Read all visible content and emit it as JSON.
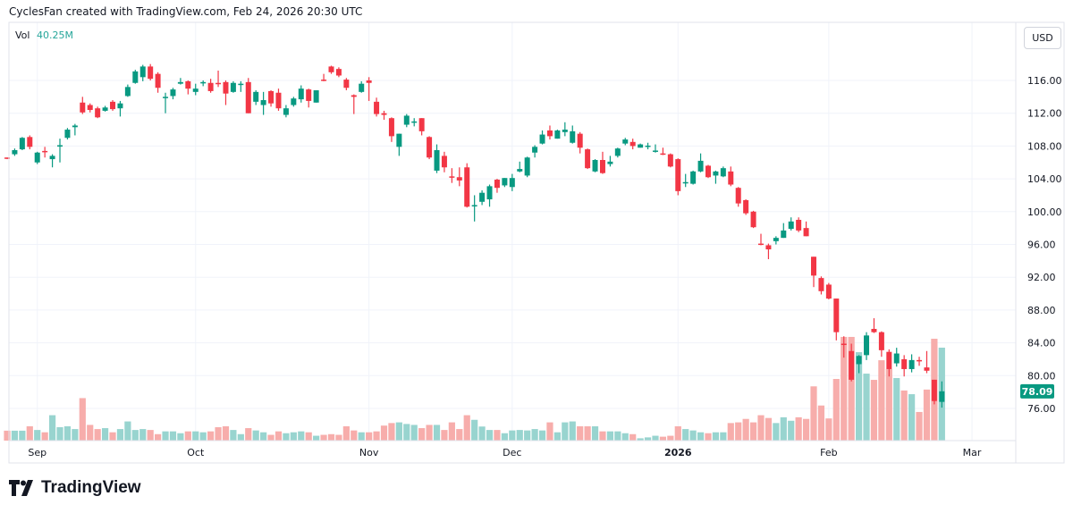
{
  "header": {
    "credit": "CyclesFan created with TradingView.com, Feb 24, 2026 20:30 UTC"
  },
  "volume_legend": {
    "label": "Vol",
    "value": "40.25M"
  },
  "currency_button": "USD",
  "brand": "TradingView",
  "colors": {
    "up": "#089981",
    "down": "#f23645",
    "volume_up": "#92d2cc",
    "volume_down": "#f7a9a7",
    "grid": "#f0f3fa"
  },
  "chart_data": {
    "type": "candlestick",
    "title": "",
    "last_price_label": "78.09",
    "y_ticks": [
      "116.00",
      "112.00",
      "108.00",
      "104.00",
      "100.00",
      "96.00",
      "92.00",
      "88.00",
      "84.00",
      "80.00",
      "76.00"
    ],
    "x_ticks": [
      "Sep",
      "Oct",
      "Nov",
      "Dec",
      "2026",
      "Feb",
      "Mar"
    ],
    "ylim": [
      72,
      120
    ],
    "grid": true,
    "volume_unit": "M",
    "candles": [
      [
        106.6,
        106.6,
        106.4,
        106.5
      ],
      [
        107.0,
        107.7,
        106.8,
        107.5
      ],
      [
        107.6,
        109.1,
        107.5,
        109.0
      ],
      [
        109.1,
        109.3,
        107.6,
        107.9
      ],
      [
        106.0,
        107.3,
        105.8,
        107.2
      ],
      [
        107.4,
        107.9,
        106.6,
        107.3
      ],
      [
        106.4,
        107.0,
        105.4,
        106.8
      ],
      [
        108.0,
        108.9,
        106.0,
        108.1
      ],
      [
        109.0,
        110.2,
        108.8,
        110.0
      ],
      [
        110.3,
        110.7,
        109.3,
        110.5
      ],
      [
        113.3,
        114.0,
        111.9,
        112.1
      ],
      [
        113.0,
        113.2,
        112.1,
        112.4
      ],
      [
        112.6,
        112.8,
        111.4,
        111.5
      ],
      [
        112.3,
        112.9,
        112.2,
        112.7
      ],
      [
        113.4,
        113.6,
        112.3,
        112.5
      ],
      [
        112.6,
        113.5,
        111.6,
        113.2
      ],
      [
        114.1,
        115.5,
        114.0,
        115.2
      ],
      [
        115.7,
        117.3,
        115.6,
        117.1
      ],
      [
        116.4,
        117.9,
        115.9,
        117.7
      ],
      [
        117.7,
        118.0,
        116.0,
        116.2
      ],
      [
        116.8,
        117.0,
        114.5,
        115.1
      ],
      [
        113.9,
        114.5,
        112.0,
        114.0
      ],
      [
        114.1,
        115.1,
        113.7,
        114.9
      ],
      [
        115.6,
        116.3,
        115.5,
        115.8
      ],
      [
        115.9,
        116.0,
        114.3,
        115.0
      ],
      [
        114.6,
        115.6,
        114.2,
        115.0
      ],
      [
        115.7,
        116.0,
        115.3,
        115.8
      ],
      [
        115.7,
        116.2,
        114.5,
        114.7
      ],
      [
        115.7,
        117.2,
        115.2,
        115.6
      ],
      [
        115.8,
        116.0,
        113.0,
        114.4
      ],
      [
        114.6,
        115.9,
        114.5,
        115.7
      ],
      [
        115.5,
        115.9,
        114.6,
        115.6
      ],
      [
        115.8,
        116.3,
        112.0,
        112.0
      ],
      [
        113.4,
        114.8,
        113.0,
        114.6
      ],
      [
        113.0,
        114.6,
        111.8,
        113.6
      ],
      [
        114.7,
        114.8,
        112.8,
        113.2
      ],
      [
        114.5,
        115.0,
        112.3,
        112.6
      ],
      [
        111.8,
        113.0,
        111.5,
        112.6
      ],
      [
        113.0,
        114.0,
        112.8,
        113.8
      ],
      [
        113.7,
        115.4,
        113.3,
        115.0
      ],
      [
        114.9,
        115.0,
        112.7,
        113.5
      ],
      [
        113.3,
        114.8,
        113.3,
        114.8
      ],
      [
        116.1,
        116.8,
        115.9,
        116.0
      ],
      [
        117.7,
        117.8,
        116.8,
        117.0
      ],
      [
        117.4,
        117.6,
        116.4,
        116.6
      ],
      [
        116.1,
        116.3,
        114.8,
        115.1
      ],
      [
        114.2,
        114.3,
        111.9,
        114.0
      ],
      [
        114.6,
        115.9,
        114.5,
        115.6
      ],
      [
        116.0,
        116.4,
        113.5,
        115.7
      ],
      [
        113.4,
        113.9,
        111.6,
        111.9
      ],
      [
        112.0,
        112.3,
        111.2,
        111.8
      ],
      [
        111.4,
        111.5,
        108.5,
        109.2
      ],
      [
        107.9,
        109.5,
        106.8,
        109.5
      ],
      [
        110.6,
        111.9,
        110.3,
        111.7
      ],
      [
        111.0,
        111.4,
        110.4,
        111.0
      ],
      [
        111.4,
        111.4,
        109.3,
        109.8
      ],
      [
        109.1,
        109.2,
        106.4,
        106.6
      ],
      [
        105.0,
        108.2,
        104.7,
        107.5
      ],
      [
        106.8,
        107.3,
        104.8,
        105.4
      ],
      [
        104.3,
        105.3,
        103.5,
        104.2
      ],
      [
        104.2,
        105.4,
        103.1,
        103.8
      ],
      [
        105.4,
        105.9,
        100.5,
        100.6
      ],
      [
        100.7,
        102.0,
        98.8,
        100.8
      ],
      [
        101.2,
        102.6,
        100.8,
        102.3
      ],
      [
        101.5,
        103.3,
        100.6,
        103.1
      ],
      [
        103.9,
        104.0,
        102.3,
        102.9
      ],
      [
        103.2,
        104.1,
        103.0,
        104.1
      ],
      [
        103.0,
        104.6,
        102.5,
        104.1
      ],
      [
        104.9,
        106.1,
        104.8,
        105.2
      ],
      [
        104.4,
        106.7,
        104.2,
        106.6
      ],
      [
        107.2,
        108.1,
        106.6,
        107.9
      ],
      [
        108.3,
        109.9,
        108.2,
        109.4
      ],
      [
        109.9,
        110.5,
        108.8,
        109.2
      ],
      [
        108.9,
        110.0,
        108.9,
        109.9
      ],
      [
        109.7,
        110.9,
        109.2,
        110.0
      ],
      [
        108.4,
        110.5,
        108.3,
        109.8
      ],
      [
        109.5,
        109.7,
        107.1,
        107.8
      ],
      [
        107.6,
        107.7,
        105.2,
        105.3
      ],
      [
        104.9,
        106.4,
        104.8,
        106.3
      ],
      [
        106.3,
        107.3,
        104.6,
        104.7
      ],
      [
        105.8,
        106.8,
        105.5,
        106.1
      ],
      [
        106.8,
        107.8,
        106.6,
        107.7
      ],
      [
        108.3,
        109.0,
        108.1,
        108.8
      ],
      [
        108.5,
        108.9,
        107.6,
        108.0
      ],
      [
        107.8,
        108.3,
        107.8,
        108.2
      ],
      [
        108.0,
        108.4,
        107.6,
        108.05
      ],
      [
        107.4,
        108.2,
        107.2,
        107.45
      ],
      [
        107.1,
        107.8,
        106.9,
        107.0
      ],
      [
        107.0,
        107.1,
        105.4,
        105.5
      ],
      [
        106.4,
        106.5,
        102.0,
        102.5
      ],
      [
        103.5,
        104.6,
        103.0,
        103.6
      ],
      [
        103.4,
        105.0,
        103.3,
        104.9
      ],
      [
        104.9,
        107.1,
        104.8,
        106.2
      ],
      [
        105.6,
        105.7,
        104.1,
        104.2
      ],
      [
        104.4,
        105.0,
        103.4,
        104.9
      ],
      [
        104.3,
        105.5,
        104.2,
        105.3
      ],
      [
        104.9,
        105.5,
        103.1,
        103.3
      ],
      [
        102.9,
        103.0,
        100.6,
        101.0
      ],
      [
        101.4,
        101.5,
        99.6,
        99.8
      ],
      [
        100.0,
        100.1,
        98.0,
        98.1
      ],
      [
        96.1,
        97.3,
        95.9,
        96.0
      ],
      [
        95.9,
        96.1,
        94.2,
        95.4
      ],
      [
        96.4,
        97.0,
        96.0,
        96.8
      ],
      [
        96.8,
        98.6,
        96.8,
        97.7
      ],
      [
        97.9,
        99.3,
        97.7,
        98.8
      ],
      [
        99.0,
        99.3,
        97.5,
        97.7
      ],
      [
        98.0,
        98.8,
        97.0,
        97.0
      ],
      [
        94.5,
        94.5,
        90.8,
        92.2
      ],
      [
        91.9,
        92.1,
        89.9,
        90.3
      ],
      [
        91.1,
        91.3,
        89.3,
        89.4
      ],
      [
        89.4,
        89.4,
        84.3,
        85.3
      ],
      [
        83.9,
        84.8,
        82.2,
        83.8
      ],
      [
        83.0,
        83.9,
        79.3,
        79.5
      ],
      [
        81.4,
        82.5,
        80.3,
        82.4
      ],
      [
        82.5,
        85.3,
        81.9,
        84.9
      ],
      [
        85.7,
        87.0,
        85.2,
        85.3
      ],
      [
        85.3,
        85.4,
        82.3,
        83.1
      ],
      [
        82.9,
        83.2,
        79.9,
        80.8
      ],
      [
        81.5,
        83.4,
        81.1,
        82.7
      ],
      [
        82.0,
        82.5,
        79.9,
        80.8
      ],
      [
        80.8,
        82.6,
        80.4,
        81.9
      ],
      [
        81.9,
        82.3,
        81.2,
        81.8
      ],
      [
        81.0,
        83.0,
        80.3,
        80.6
      ],
      [
        79.5,
        79.5,
        76.5,
        76.9
      ],
      [
        76.8,
        79.3,
        76.1,
        78.09
      ]
    ],
    "volume": [
      4.3,
      4.3,
      4.3,
      6.2,
      4.6,
      3.6,
      11.0,
      5.8,
      6.2,
      5.0,
      18.4,
      6.8,
      5.0,
      5.4,
      3.6,
      5.0,
      8.3,
      4.6,
      5.0,
      4.6,
      2.8,
      4.0,
      4.0,
      3.2,
      4.0,
      4.0,
      3.6,
      4.0,
      5.8,
      6.2,
      4.6,
      2.8,
      5.4,
      4.4,
      3.6,
      2.5,
      4.0,
      3.2,
      3.6,
      4.0,
      3.6,
      2.1,
      2.5,
      2.8,
      2.5,
      6.2,
      4.4,
      3.6,
      3.6,
      4.0,
      6.5,
      7.6,
      7.9,
      7.2,
      6.8,
      5.4,
      6.8,
      6.8,
      4.6,
      7.9,
      5.0,
      11.0,
      9.0,
      6.1,
      4.6,
      4.6,
      3.2,
      4.4,
      4.6,
      4.4,
      5.0,
      4.4,
      7.9,
      3.6,
      7.9,
      8.3,
      6.2,
      6.2,
      6.2,
      4.0,
      4.0,
      4.0,
      3.2,
      2.8,
      1.0,
      1.4,
      2.1,
      1.7,
      2.1,
      6.2,
      5.0,
      4.4,
      3.6,
      3.2,
      3.6,
      3.6,
      7.6,
      7.9,
      9.4,
      7.9,
      11.0,
      9.8,
      7.6,
      10.1,
      8.6,
      10.1,
      9.4,
      23.5,
      15.2,
      9.6,
      26.7,
      44.9,
      44.9,
      38.3,
      29.0,
      26.3,
      34.8,
      31.0,
      27.1,
      21.7,
      20.1,
      12.4,
      22.1,
      44.1,
      40.25
    ]
  }
}
